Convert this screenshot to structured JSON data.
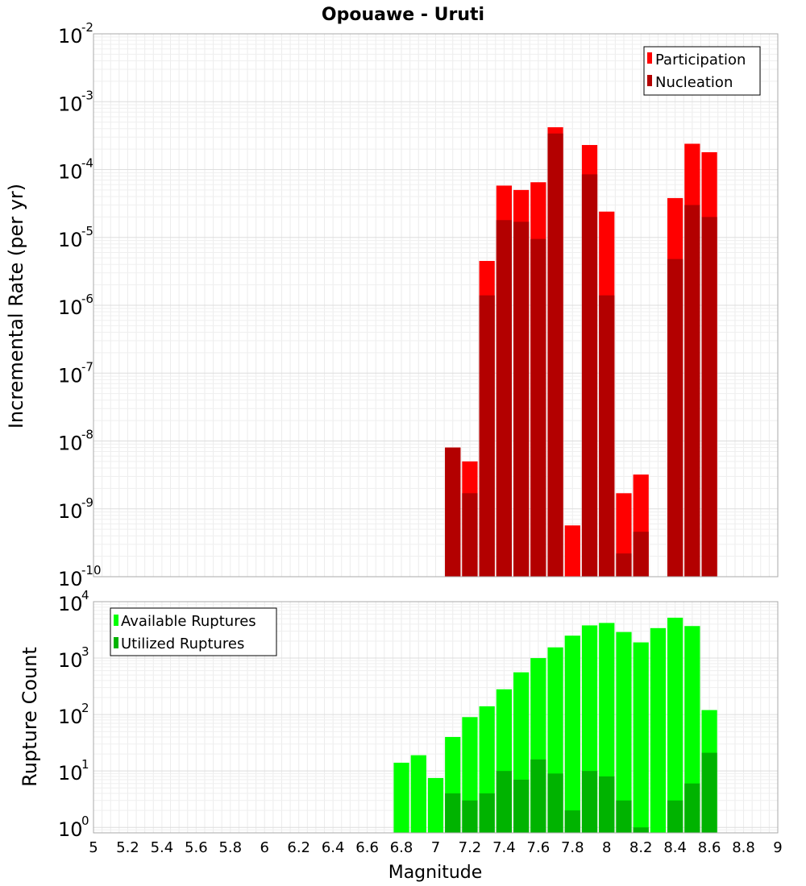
{
  "chart_data": [
    {
      "type": "bar",
      "title": "Opouawe - Uruti",
      "ylabel": "Incremental Rate (per yr)",
      "xlabel": "",
      "y_scale": "log",
      "xlim": [
        5,
        9
      ],
      "ylim": [
        1e-10,
        0.01
      ],
      "y_tick_exponents": [
        -10,
        -9,
        -8,
        -7,
        -6,
        -5,
        -4,
        -3,
        -2
      ],
      "grid": true,
      "legend_position": "top-right",
      "bin_width": 0.1,
      "x": [
        7.1,
        7.2,
        7.3,
        7.4,
        7.5,
        7.6,
        7.7,
        7.8,
        7.9,
        8.0,
        8.1,
        8.2,
        8.4,
        8.5,
        8.6
      ],
      "series": [
        {
          "name": "Participation",
          "color": "#ff0000",
          "values": [
            8e-09,
            5e-09,
            4.5e-06,
            5.8e-05,
            5e-05,
            6.5e-05,
            0.00042,
            5.7e-10,
            0.00023,
            2.4e-05,
            1.7e-09,
            3.2e-09,
            3.8e-05,
            0.00024,
            0.00018
          ]
        },
        {
          "name": "Nucleation",
          "color": "#b30000",
          "values": [
            8e-09,
            1.7e-09,
            1.4e-06,
            1.8e-05,
            1.7e-05,
            9.5e-06,
            0.00034,
            null,
            8.5e-05,
            1.4e-06,
            2.2e-10,
            4.6e-10,
            4.8e-06,
            3e-05,
            2e-05
          ]
        }
      ]
    },
    {
      "type": "bar",
      "title": "",
      "ylabel": "Rupture Count",
      "xlabel": "Magnitude",
      "y_scale": "log",
      "xlim": [
        5,
        9
      ],
      "ylim": [
        0.8,
        10000
      ],
      "y_tick_exponents": [
        0,
        1,
        2,
        3,
        4
      ],
      "x_ticks": [
        "5",
        "5.2",
        "5.4",
        "5.6",
        "5.8",
        "6",
        "6.2",
        "6.4",
        "6.6",
        "6.8",
        "7",
        "7.2",
        "7.4",
        "7.6",
        "7.8",
        "8",
        "8.2",
        "8.4",
        "8.6",
        "8.8",
        "9"
      ],
      "grid": true,
      "legend_position": "top-left",
      "bin_width": 0.1,
      "x": [
        6.8,
        6.9,
        7.0,
        7.1,
        7.2,
        7.3,
        7.4,
        7.5,
        7.6,
        7.7,
        7.8,
        7.9,
        8.0,
        8.1,
        8.2,
        8.3,
        8.4,
        8.5,
        8.6
      ],
      "series": [
        {
          "name": "Available Ruptures",
          "color": "#00ff00",
          "values": [
            14,
            19,
            7.5,
            40,
            90,
            140,
            280,
            560,
            1000,
            1550,
            2500,
            3800,
            4200,
            2900,
            1900,
            3400,
            5200,
            3700,
            120
          ]
        },
        {
          "name": "Utilized Ruptures",
          "color": "#00b300",
          "values": [
            null,
            null,
            null,
            4,
            3,
            4,
            10,
            7,
            16,
            9,
            2,
            10,
            8,
            3,
            1,
            null,
            3,
            6,
            21
          ]
        }
      ]
    }
  ]
}
